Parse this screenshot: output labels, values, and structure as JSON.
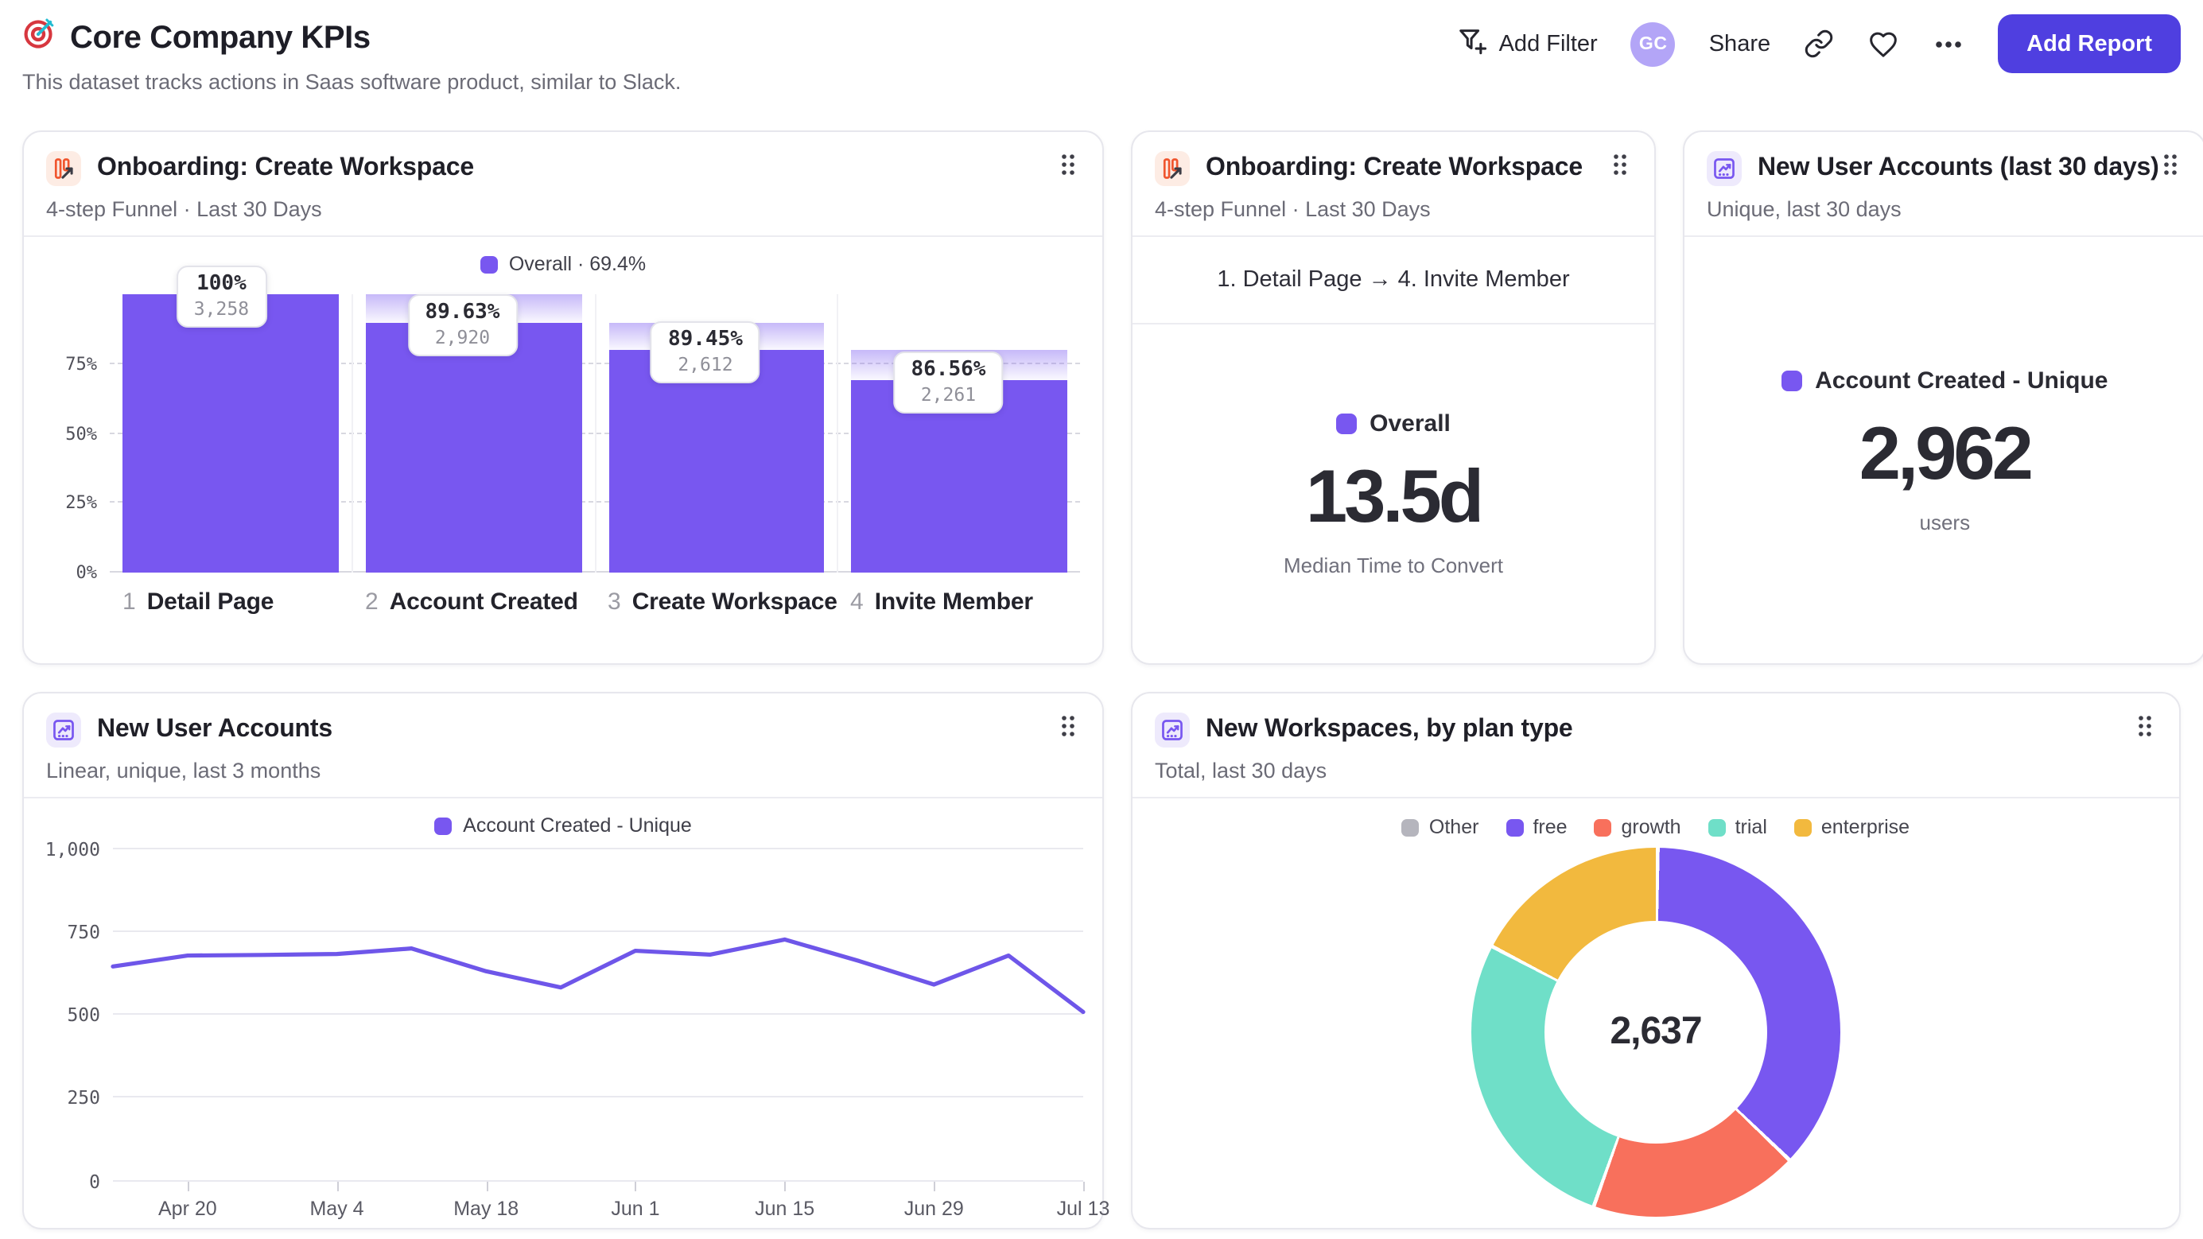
{
  "page": {
    "title": "Core Company KPIs",
    "subtitle": "This dataset tracks actions in Saas software product, similar to Slack."
  },
  "header": {
    "add_filter": "Add Filter",
    "avatar_initials": "GC",
    "share": "Share",
    "add_report": "Add Report"
  },
  "colors": {
    "accent_purple": "#7857f0",
    "line_purple": "#6e56e9",
    "button_purple": "#4f3fe0",
    "avatar_bg": "#b3a5f7",
    "funnel_icon_orange": "#f0552e",
    "grid_gray": "#d8d8e0"
  },
  "chart_data": [
    {
      "type": "bar",
      "kind": "funnel",
      "title": "Onboarding: Create Workspace",
      "subtitle": "4-step Funnel · Last 30 Days",
      "icon": "funnel-report-icon",
      "legend": "Overall · 69.4%",
      "color": "#7857f0",
      "yticks": [
        "0%",
        "25%",
        "50%",
        "75%"
      ],
      "ylim": [
        0,
        100
      ],
      "grid": "dashed",
      "steps": [
        {
          "num": "1",
          "label": "Detail Page",
          "pct_label": "100%",
          "count_label": "3,258",
          "count": 3258,
          "pct_of_first": 100
        },
        {
          "num": "2",
          "label": "Account Created",
          "pct_label": "89.63%",
          "count_label": "2,920",
          "count": 2920,
          "pct_of_first": 89.63
        },
        {
          "num": "3",
          "label": "Create Workspace",
          "pct_label": "89.45%",
          "count_label": "2,612",
          "count": 2612,
          "pct_of_first": 80.17
        },
        {
          "num": "4",
          "label": "Invite Member",
          "pct_label": "86.56%",
          "count_label": "2,261",
          "count": 2261,
          "pct_of_first": 69.4
        }
      ]
    },
    {
      "type": "stat",
      "title": "Onboarding: Create Workspace",
      "subtitle": "4-step Funnel · Last 30 Days",
      "icon": "funnel-report-icon",
      "range_label": "1. Detail Page → 4. Invite Member",
      "legend": "Overall",
      "legend_color": "#7857f0",
      "value": "13.5d",
      "caption": "Median Time to Convert"
    },
    {
      "type": "stat",
      "title": "New User Accounts (last 30 days)",
      "subtitle": "Unique, last 30 days",
      "icon": "insights-report-icon",
      "legend": "Account Created - Unique",
      "legend_color": "#7857f0",
      "value": "2,962",
      "caption": "users"
    },
    {
      "type": "line",
      "title": "New User Accounts",
      "subtitle": "Linear, unique, last 3 months",
      "icon": "insights-report-icon",
      "legend": "Account Created - Unique",
      "legend_position": "top",
      "color": "#6e56e9",
      "x": [
        "Apr 13",
        "Apr 20",
        "Apr 27",
        "May 4",
        "May 11",
        "May 18",
        "May 25",
        "Jun 1",
        "Jun 8",
        "Jun 15",
        "Jun 22",
        "Jun 29",
        "Jul 6",
        "Jul 13"
      ],
      "values": [
        666,
        700,
        702,
        705,
        722,
        651,
        601,
        715,
        703,
        750,
        683,
        610,
        700,
        525
      ],
      "xticks": [
        "Apr 20",
        "May 4",
        "May 18",
        "Jun 1",
        "Jun 15",
        "Jun 29",
        "Jul 13"
      ],
      "yticks": [
        "0",
        "250",
        "500",
        "750",
        "1,000"
      ],
      "ylim": [
        0,
        1000
      ],
      "grid": true
    },
    {
      "type": "pie",
      "kind": "donut",
      "title": "New Workspaces, by plan type",
      "subtitle": "Total, last 30 days",
      "icon": "insights-report-icon",
      "center_label": "2,637",
      "total": 2637,
      "legend_position": "top",
      "slices": [
        {
          "label": "Other",
          "value": 0,
          "color": "#b5b5bd"
        },
        {
          "label": "free",
          "value": 975,
          "color": "#7857f0"
        },
        {
          "label": "growth",
          "value": 483,
          "color": "#f8705c"
        },
        {
          "label": "trial",
          "value": 718,
          "color": "#6fdfc8"
        },
        {
          "label": "enterprise",
          "value": 461,
          "color": "#f2b93e"
        }
      ]
    }
  ]
}
